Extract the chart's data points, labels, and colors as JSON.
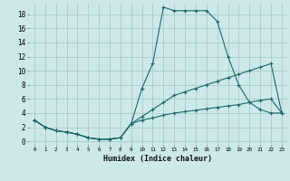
{
  "xlabel": "Humidex (Indice chaleur)",
  "bg_color": "#cce8e8",
  "grid_color": "#aacccc",
  "line_color": "#1a6b6b",
  "xlim": [
    -0.5,
    23.5
  ],
  "ylim": [
    -0.5,
    19.5
  ],
  "xticks": [
    0,
    1,
    2,
    3,
    4,
    5,
    6,
    7,
    8,
    9,
    10,
    11,
    12,
    13,
    14,
    15,
    16,
    17,
    18,
    19,
    20,
    21,
    22,
    23
  ],
  "yticks": [
    0,
    2,
    4,
    6,
    8,
    10,
    12,
    14,
    16,
    18
  ],
  "line1_x": [
    0,
    1,
    2,
    3,
    4,
    5,
    6,
    7,
    8,
    9,
    10,
    11,
    12,
    13,
    14,
    15,
    16,
    17,
    18,
    19,
    20,
    21,
    22,
    23
  ],
  "line1_y": [
    3,
    2,
    1.5,
    1.3,
    1.0,
    0.5,
    0.3,
    0.3,
    0.5,
    2.5,
    7.5,
    11,
    19,
    18.5,
    18.5,
    18.5,
    18.5,
    17,
    12,
    8,
    5.5,
    4.5,
    4,
    4
  ],
  "line2_x": [
    0,
    1,
    2,
    3,
    4,
    5,
    6,
    7,
    8,
    9,
    10,
    11,
    12,
    13,
    14,
    15,
    16,
    17,
    18,
    19,
    20,
    21,
    22,
    23
  ],
  "line2_y": [
    3,
    2,
    1.5,
    1.3,
    1.0,
    0.5,
    0.3,
    0.3,
    0.5,
    2.5,
    3.5,
    4.5,
    5.5,
    6.5,
    7,
    7.5,
    8,
    8.5,
    9,
    9.5,
    10,
    10.5,
    11,
    4
  ],
  "line3_x": [
    0,
    1,
    2,
    3,
    4,
    5,
    6,
    7,
    8,
    9,
    10,
    11,
    12,
    13,
    14,
    15,
    16,
    17,
    18,
    19,
    20,
    21,
    22,
    23
  ],
  "line3_y": [
    3,
    2,
    1.5,
    1.3,
    1.0,
    0.5,
    0.3,
    0.3,
    0.5,
    2.5,
    3,
    3.3,
    3.7,
    4,
    4.2,
    4.4,
    4.6,
    4.8,
    5,
    5.2,
    5.5,
    5.8,
    6.0,
    4
  ]
}
